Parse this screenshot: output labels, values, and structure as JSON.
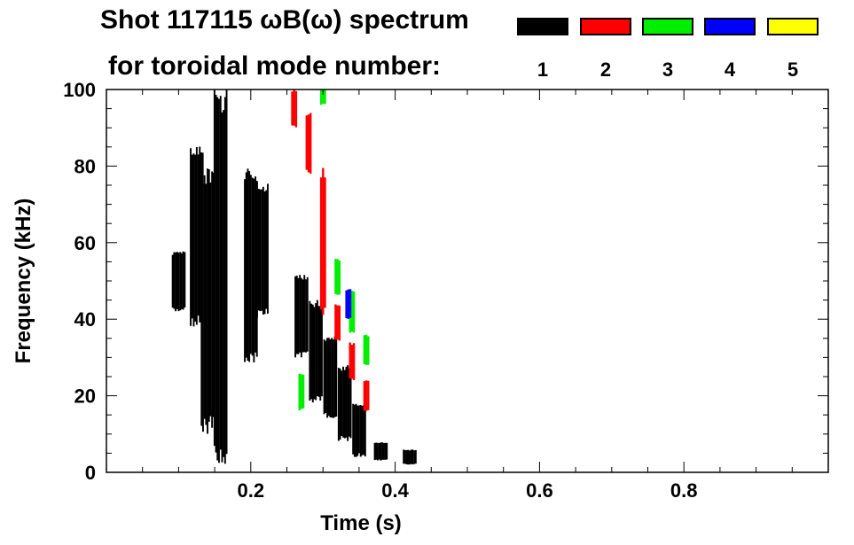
{
  "title": {
    "line1": "Shot 117115 ωB(ω) spectrum",
    "line2": "for toroidal mode number:"
  },
  "legend": {
    "entries": [
      {
        "label": "1",
        "color": "#000000"
      },
      {
        "label": "2",
        "color": "#ff0000"
      },
      {
        "label": "3",
        "color": "#00ee00"
      },
      {
        "label": "4",
        "color": "#0000ff"
      },
      {
        "label": "5",
        "color": "#ffff00"
      }
    ]
  },
  "chart_data": {
    "type": "heatmap",
    "title": "Shot 117115 ωB(ω) spectrum",
    "xlabel": "Time (s)",
    "ylabel": "Frequency (kHz)",
    "xlim": [
      0.0,
      1.0
    ],
    "ylim": [
      0,
      100
    ],
    "xticks": [
      "0.2",
      "0.4",
      "0.6",
      "0.8"
    ],
    "xtick_values": [
      0.2,
      0.4,
      0.6,
      0.8
    ],
    "yticks": [
      "0",
      "20",
      "40",
      "60",
      "80",
      "100"
    ],
    "ytick_values": [
      0,
      20,
      40,
      60,
      80,
      100
    ],
    "series": [
      {
        "name": "1",
        "color": "#000000",
        "regions": [
          {
            "t": 0.1,
            "f": [
              42,
              58
            ]
          },
          {
            "t": 0.125,
            "f": [
              38,
              86
            ]
          },
          {
            "t": 0.14,
            "f": [
              10,
              80
            ]
          },
          {
            "t": 0.158,
            "f": [
              2,
              100
            ]
          },
          {
            "t": 0.2,
            "f": [
              28,
              80
            ]
          },
          {
            "t": 0.215,
            "f": [
              40,
              76
            ]
          },
          {
            "t": 0.27,
            "f": [
              30,
              52
            ]
          },
          {
            "t": 0.29,
            "f": [
              18,
              45
            ]
          },
          {
            "t": 0.31,
            "f": [
              14,
              36
            ]
          },
          {
            "t": 0.33,
            "f": [
              8,
              28
            ]
          },
          {
            "t": 0.35,
            "f": [
              4,
              18
            ]
          },
          {
            "t": 0.38,
            "f": [
              3,
              8
            ]
          },
          {
            "t": 0.42,
            "f": [
              2,
              6
            ]
          }
        ]
      },
      {
        "name": "2",
        "color": "#ff0000",
        "regions": [
          {
            "t": 0.26,
            "f": [
              90,
              100
            ]
          },
          {
            "t": 0.28,
            "f": [
              78,
              94
            ]
          },
          {
            "t": 0.3,
            "f": [
              40,
              80
            ]
          },
          {
            "t": 0.32,
            "f": [
              34,
              44
            ]
          },
          {
            "t": 0.34,
            "f": [
              24,
              34
            ]
          },
          {
            "t": 0.36,
            "f": [
              16,
              24
            ]
          }
        ]
      },
      {
        "name": "3",
        "color": "#00ee00",
        "regions": [
          {
            "t": 0.27,
            "f": [
              16,
              26
            ]
          },
          {
            "t": 0.3,
            "f": [
              96,
              100
            ]
          },
          {
            "t": 0.32,
            "f": [
              46,
              56
            ]
          },
          {
            "t": 0.34,
            "f": [
              36,
              48
            ]
          },
          {
            "t": 0.36,
            "f": [
              28,
              36
            ]
          }
        ]
      },
      {
        "name": "4",
        "color": "#0000ff",
        "regions": [
          {
            "t": 0.335,
            "f": [
              40,
              48
            ]
          }
        ]
      },
      {
        "name": "5",
        "color": "#ffff00",
        "regions": []
      }
    ]
  }
}
